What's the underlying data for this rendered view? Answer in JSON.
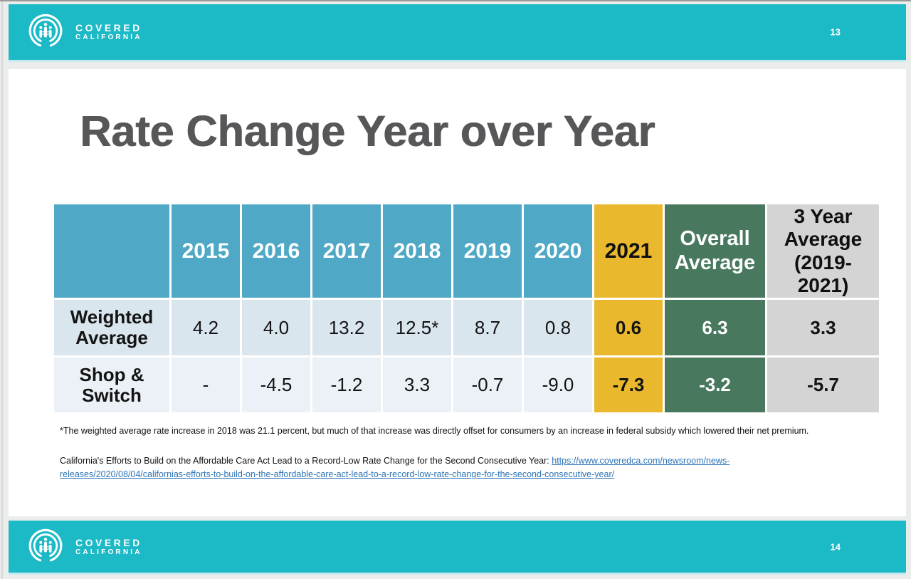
{
  "top_bar": {
    "page_number": "13"
  },
  "bottom_bar": {
    "page_number": "14"
  },
  "logo": {
    "line1": "COVERED",
    "line2": "CALIFORNIA"
  },
  "slide": {
    "title": "Rate Change Year over Year",
    "footnote": "*The weighted average rate increase in 2018 was 21.1 percent, but much of that increase was directly offset for consumers by an increase in federal subsidy which lowered their net premium.",
    "reference_text": "California's Efforts to Build on the Affordable Care Act Lead to a Record-Low Rate Change for the Second Consecutive Year: ",
    "reference_link": "https://www.coveredca.com/newsroom/news-releases/2020/08/04/californias-efforts-to-build-on-the-affordable-care-act-lead-to-a-record-low-rate-change-for-the-second-consecutive-year/"
  },
  "chart_data": {
    "type": "table",
    "columns": [
      "",
      "2015",
      "2016",
      "2017",
      "2018",
      "2019",
      "2020",
      "2021",
      "Overall Average",
      "3 Year Average (2019-2021)"
    ],
    "column_styles": [
      "label",
      "teal",
      "teal",
      "teal",
      "teal",
      "teal",
      "teal",
      "gold",
      "green",
      "gray"
    ],
    "rows": [
      {
        "label": "Weighted Average",
        "values": [
          "4.2",
          "4.0",
          "13.2",
          "12.5*",
          "8.7",
          "0.8",
          "0.6",
          "6.3",
          "3.3"
        ]
      },
      {
        "label": "Shop & Switch",
        "values": [
          "-",
          "-4.5",
          "-1.2",
          "3.3",
          "-0.7",
          "-9.0",
          "-7.3",
          "-3.2",
          "-5.7"
        ]
      }
    ]
  },
  "colors": {
    "brand_teal": "#1cb9c6",
    "header_teal": "#4fa9c6",
    "gold": "#e9b82d",
    "green": "#48795f",
    "gray_column": "#d4d4d4",
    "row1_bg": "#d9e6ed",
    "row2_bg": "#ebf1f6",
    "title_gray": "#57575a",
    "link_blue": "#2d74b6"
  }
}
